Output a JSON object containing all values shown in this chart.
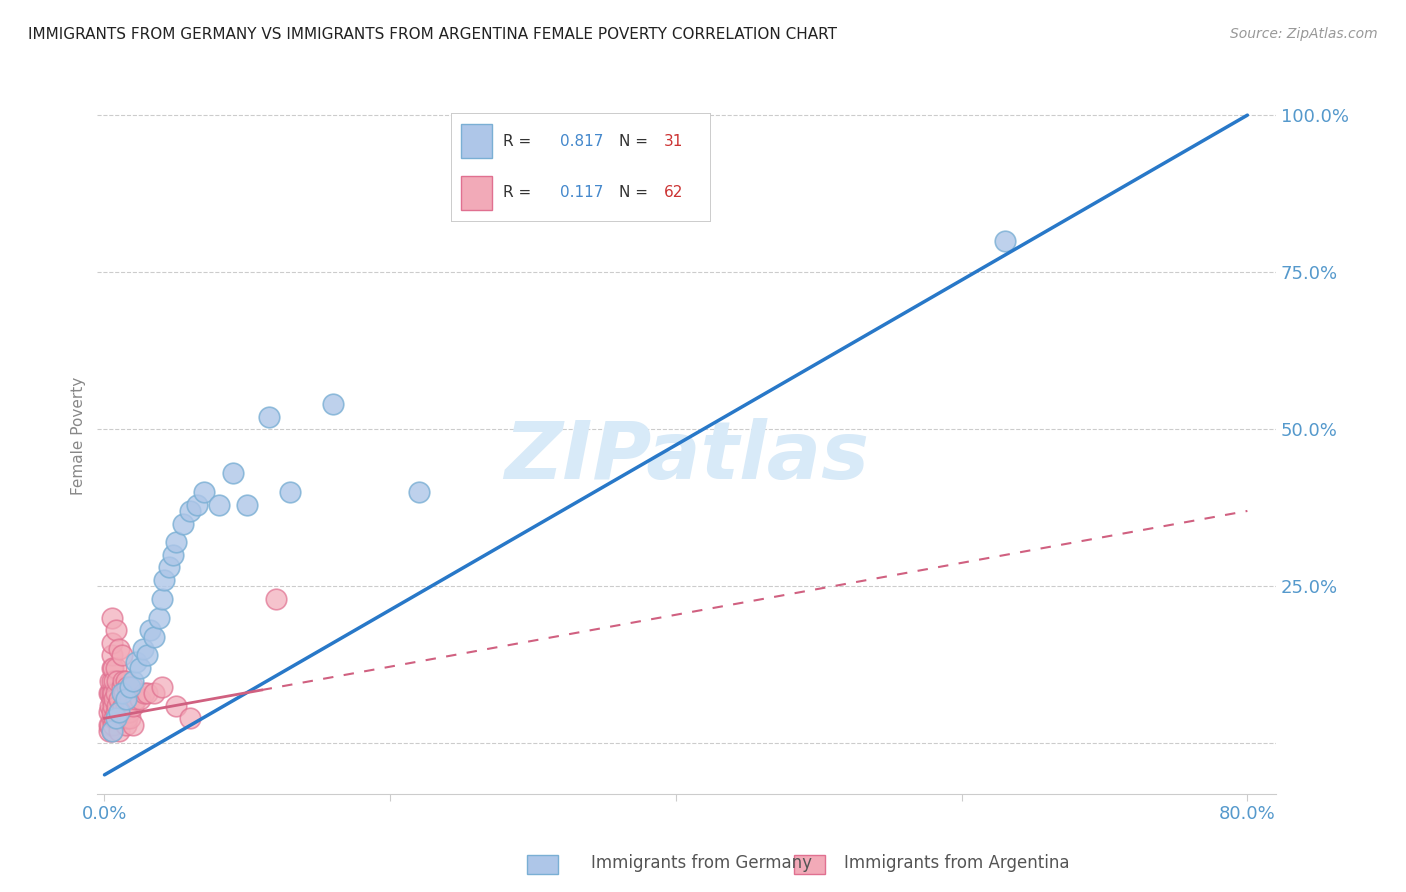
{
  "title": "IMMIGRANTS FROM GERMANY VS IMMIGRANTS FROM ARGENTINA FEMALE POVERTY CORRELATION CHART",
  "source": "Source: ZipAtlas.com",
  "ylabel": "Female Poverty",
  "germany_R": 0.817,
  "germany_N": 31,
  "argentina_R": 0.117,
  "argentina_N": 62,
  "germany_color": "#aec6e8",
  "germany_edge_color": "#7aafd4",
  "argentina_color": "#f2aab8",
  "argentina_edge_color": "#e07090",
  "germany_line_color": "#2878c8",
  "argentina_line_color": "#d06080",
  "background_color": "#ffffff",
  "grid_color": "#cccccc",
  "watermark_color": "#d8eaf8",
  "tick_color": "#5599cc",
  "ylabel_color": "#888888",
  "germany_x": [
    0.005,
    0.008,
    0.01,
    0.012,
    0.015,
    0.018,
    0.02,
    0.022,
    0.025,
    0.027,
    0.03,
    0.032,
    0.035,
    0.038,
    0.04,
    0.042,
    0.045,
    0.048,
    0.05,
    0.055,
    0.06,
    0.065,
    0.07,
    0.08,
    0.09,
    0.1,
    0.115,
    0.13,
    0.16,
    0.22,
    0.63
  ],
  "germany_y": [
    0.02,
    0.04,
    0.05,
    0.08,
    0.07,
    0.09,
    0.1,
    0.13,
    0.12,
    0.15,
    0.14,
    0.18,
    0.17,
    0.2,
    0.23,
    0.26,
    0.28,
    0.3,
    0.32,
    0.35,
    0.37,
    0.38,
    0.4,
    0.38,
    0.43,
    0.38,
    0.52,
    0.4,
    0.54,
    0.4,
    0.8
  ],
  "argentina_x": [
    0.003,
    0.003,
    0.003,
    0.003,
    0.004,
    0.004,
    0.004,
    0.004,
    0.005,
    0.005,
    0.005,
    0.005,
    0.005,
    0.005,
    0.005,
    0.005,
    0.005,
    0.005,
    0.006,
    0.006,
    0.006,
    0.006,
    0.007,
    0.007,
    0.007,
    0.008,
    0.008,
    0.008,
    0.008,
    0.009,
    0.009,
    0.01,
    0.01,
    0.01,
    0.01,
    0.012,
    0.012,
    0.012,
    0.013,
    0.013,
    0.014,
    0.014,
    0.015,
    0.015,
    0.015,
    0.016,
    0.016,
    0.017,
    0.018,
    0.018,
    0.02,
    0.02,
    0.02,
    0.022,
    0.025,
    0.028,
    0.03,
    0.035,
    0.04,
    0.05,
    0.06,
    0.12
  ],
  "argentina_y": [
    0.02,
    0.03,
    0.05,
    0.08,
    0.03,
    0.06,
    0.08,
    0.1,
    0.02,
    0.04,
    0.05,
    0.07,
    0.08,
    0.1,
    0.12,
    0.14,
    0.16,
    0.2,
    0.03,
    0.06,
    0.08,
    0.12,
    0.04,
    0.07,
    0.1,
    0.05,
    0.08,
    0.12,
    0.18,
    0.06,
    0.1,
    0.02,
    0.05,
    0.07,
    0.15,
    0.05,
    0.09,
    0.14,
    0.06,
    0.1,
    0.04,
    0.08,
    0.03,
    0.06,
    0.1,
    0.04,
    0.09,
    0.05,
    0.04,
    0.07,
    0.03,
    0.06,
    0.09,
    0.07,
    0.07,
    0.08,
    0.08,
    0.08,
    0.09,
    0.06,
    0.04,
    0.23
  ],
  "germany_line_x0": 0.0,
  "germany_line_y0": -0.05,
  "germany_line_x1": 0.8,
  "germany_line_y1": 1.0,
  "argentina_line_x0": 0.0,
  "argentina_line_y0": 0.04,
  "argentina_line_x1": 0.8,
  "argentina_line_y1": 0.37,
  "xlim": [
    -0.005,
    0.82
  ],
  "ylim": [
    -0.08,
    1.06
  ],
  "xtick_positions": [
    0.0,
    0.2,
    0.4,
    0.6,
    0.8
  ],
  "ytick_positions": [
    0.0,
    0.25,
    0.5,
    0.75,
    1.0
  ],
  "legend_R1": "0.817",
  "legend_N1": "31",
  "legend_R2": "0.117",
  "legend_N2": "62"
}
